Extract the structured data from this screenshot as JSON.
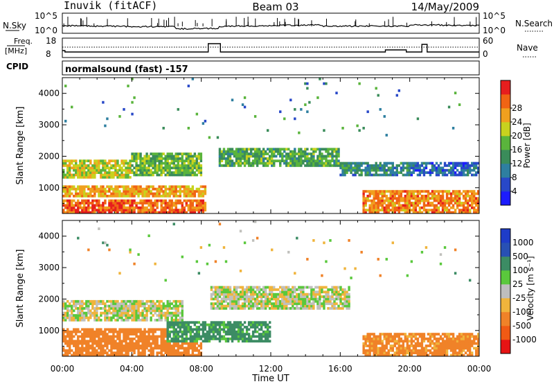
{
  "header": {
    "station": "Inuvik (fitACF)",
    "beam": "Beam 03",
    "date": "14/May/2009"
  },
  "summary_panel": {
    "nsky_label": "N.Sky",
    "nsky_ticks": [
      "10^5",
      "10^0"
    ],
    "nsearch_label": "N.Search",
    "nsearch_ticks": [
      "10^5",
      "10^0"
    ],
    "freq_label_line1": "Freq.",
    "freq_label_line2": "[MHz]",
    "freq_ticks": [
      "18",
      "8"
    ],
    "nave_label": "Nave",
    "nave_ticks": [
      "60",
      "0"
    ],
    "cpid_label": "CPID",
    "cpid_text": "normalsound (fast) -157"
  },
  "colors": {
    "power": [
      "#1c1cff",
      "#2848c8",
      "#2e7fa0",
      "#3a8c5a",
      "#5ab43c",
      "#c8d21e",
      "#f0a01e",
      "#f06414",
      "#e61e1e"
    ],
    "velocity": [
      "#1e3cc8",
      "#2850b4",
      "#3c8c64",
      "#5ac83c",
      "#bebebe",
      "#f0b43c",
      "#f08228",
      "#f05a14",
      "#e61414"
    ],
    "velocity_gray": "#c0c0bc"
  },
  "chart_data": [
    {
      "type": "heatmap",
      "title": "",
      "xlabel": "Time UT",
      "ylabel": "Slant Range [km]",
      "xlim": [
        "00:00",
        "24:00"
      ],
      "ylim": [
        180,
        4500
      ],
      "xticks": [
        "00:00",
        "04:00",
        "08:00",
        "12:00",
        "16:00",
        "20:00",
        "00:00"
      ],
      "yticks": [
        1000,
        2000,
        3000,
        4000
      ],
      "colorbar": {
        "label": "Power [dB]",
        "levels": [
          0,
          4,
          8,
          12,
          16,
          20,
          24,
          28,
          32
        ],
        "ticks": [
          "4",
          "8",
          "12",
          "16",
          "20",
          "24",
          "28"
        ]
      },
      "echo_regions": [
        {
          "t": [
            0.0,
            4.0
          ],
          "range_km": [
            1300,
            1900
          ],
          "power_db": 22
        },
        {
          "t": [
            0.0,
            8.3
          ],
          "range_km": [
            700,
            1100
          ],
          "power_db": 26
        },
        {
          "t": [
            0.0,
            8.3
          ],
          "range_km": [
            200,
            650
          ],
          "power_db": 30
        },
        {
          "t": [
            4.0,
            8.0
          ],
          "range_km": [
            1400,
            2100
          ],
          "power_db": 18
        },
        {
          "t": [
            9.0,
            16.0
          ],
          "range_km": [
            1700,
            2300
          ],
          "power_db": 16
        },
        {
          "t": [
            16.0,
            20.0
          ],
          "range_km": [
            1400,
            1800
          ],
          "power_db": 12
        },
        {
          "t": [
            17.3,
            24.0
          ],
          "range_km": [
            200,
            900
          ],
          "power_db": 28
        },
        {
          "t": [
            20.0,
            24.0
          ],
          "range_km": [
            1400,
            1800
          ],
          "power_db": 8
        }
      ]
    },
    {
      "type": "heatmap",
      "title": "",
      "xlabel": "Time UT",
      "ylabel": "Slant Range [km]",
      "xlim": [
        "00:00",
        "24:00"
      ],
      "ylim": [
        180,
        4500
      ],
      "xticks": [
        "00:00",
        "04:00",
        "08:00",
        "12:00",
        "16:00",
        "20:00",
        "00:00"
      ],
      "yticks": [
        1000,
        2000,
        3000,
        4000
      ],
      "colorbar": {
        "label": "Velocity [m s⁻¹]",
        "ticks": [
          "1000",
          "500",
          "100",
          "25",
          "-25",
          "-100",
          "-500",
          "-1000"
        ]
      },
      "echo_regions": [
        {
          "t": [
            0.0,
            7.0
          ],
          "range_km": [
            1300,
            2000
          ],
          "velocity": 0
        },
        {
          "t": [
            8.5,
            16.5
          ],
          "range_km": [
            1700,
            2400
          ],
          "velocity": 0
        },
        {
          "t": [
            0.0,
            8.0
          ],
          "range_km": [
            200,
            1100
          ],
          "velocity": -300
        },
        {
          "t": [
            6.0,
            12.0
          ],
          "range_km": [
            600,
            1300
          ],
          "velocity": 150
        },
        {
          "t": [
            17.3,
            24.0
          ],
          "range_km": [
            200,
            900
          ],
          "velocity": -150
        }
      ]
    }
  ]
}
